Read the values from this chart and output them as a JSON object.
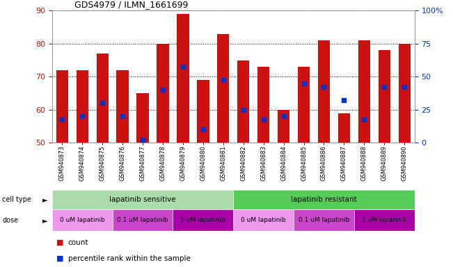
{
  "title": "GDS4979 / ILMN_1661699",
  "samples": [
    "GSM940873",
    "GSM940874",
    "GSM940875",
    "GSM940876",
    "GSM940877",
    "GSM940878",
    "GSM940879",
    "GSM940880",
    "GSM940881",
    "GSM940882",
    "GSM940883",
    "GSM940884",
    "GSM940885",
    "GSM940886",
    "GSM940887",
    "GSM940888",
    "GSM940889",
    "GSM940890"
  ],
  "bar_heights": [
    72,
    72,
    77,
    72,
    65,
    80,
    89,
    69,
    83,
    75,
    73,
    60,
    73,
    81,
    59,
    81,
    78,
    80
  ],
  "blue_markers": [
    57,
    58,
    62,
    58,
    51,
    66,
    73,
    54,
    69,
    60,
    57,
    58,
    68,
    67,
    63,
    57,
    67,
    67
  ],
  "y_min": 50,
  "y_max": 90,
  "y_ticks_left": [
    50,
    60,
    70,
    80,
    90
  ],
  "y_ticks_right": [
    0,
    25,
    50,
    75,
    100
  ],
  "y_ticks_right_labels": [
    "0",
    "25",
    "50",
    "75",
    "100%"
  ],
  "bar_color": "#cc1111",
  "bar_width": 0.6,
  "blue_marker_color": "#0033cc",
  "cell_type_labels": [
    "lapatinib sensitive",
    "lapatinib resistant"
  ],
  "cell_type_color_sensitive": "#aaddaa",
  "cell_type_color_resistant": "#55cc55",
  "dose_groups": [
    {
      "label": "0 uM lapatinib",
      "range": [
        0,
        3
      ],
      "color": "#ee99ee"
    },
    {
      "label": "0.1 uM lapatinib",
      "range": [
        3,
        6
      ],
      "color": "#cc44cc"
    },
    {
      "label": "1 uM lapatinib",
      "range": [
        6,
        9
      ],
      "color": "#aa00aa"
    },
    {
      "label": "0 uM lapatinib",
      "range": [
        9,
        12
      ],
      "color": "#ee99ee"
    },
    {
      "label": "0.1 uM lapatinib",
      "range": [
        12,
        15
      ],
      "color": "#cc44cc"
    },
    {
      "label": "1 uM lapatinib",
      "range": [
        15,
        18
      ],
      "color": "#aa00aa"
    }
  ],
  "legend_count_color": "#cc1111",
  "legend_pct_color": "#0033cc",
  "background_color": "#ffffff",
  "grid_color": "#000000",
  "tick_label_color_left": "#cc1111",
  "tick_label_color_right": "#0033cc",
  "cell_type_row_label": "cell type",
  "dose_row_label": "dose",
  "legend_count_label": "count",
  "legend_pct_label": "percentile rank within the sample"
}
